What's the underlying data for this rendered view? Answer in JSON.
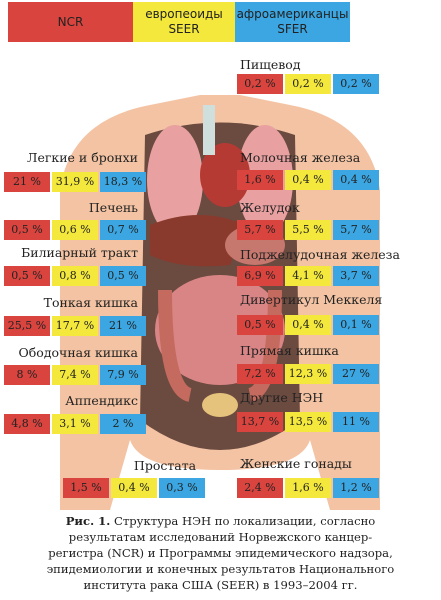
{
  "legend": [
    "NCR",
    "европеоиды SEER",
    "афроамериканцы SFER"
  ],
  "organs": [
    {
      "label": "Легкие и бронхи",
      "values": [
        "21 %",
        "31,9 %",
        "18,3 %"
      ]
    },
    {
      "label": "Печень",
      "values": [
        "0,5 %",
        "0,6 %",
        "0,7 %"
      ]
    },
    {
      "label": "Билиарный тракт",
      "values": [
        "0,5 %",
        "0,8 %",
        "0,5 %"
      ]
    },
    {
      "label": "Тонкая кишка",
      "values": [
        "25,5 %",
        "17,7 %",
        "21 %"
      ]
    },
    {
      "label": "Ободочная кишка",
      "values": [
        "8 %",
        "7,4 %",
        "7,9 %"
      ]
    },
    {
      "label": "Аппендикс",
      "values": [
        "4,8 %",
        "3,1 %",
        "2 %"
      ]
    },
    {
      "label": "Простата",
      "values": [
        "1,5 %",
        "0,4 %",
        "0,3 %"
      ]
    },
    {
      "label": "Пищевод",
      "values": [
        "0,2 %",
        "0,2 %",
        "0,2 %"
      ]
    },
    {
      "label": "Молочная железа",
      "values": [
        "1,6 %",
        "0,4 %",
        "0,4 %"
      ]
    },
    {
      "label": "Желудок",
      "values": [
        "5,7 %",
        "5,5 %",
        "5,7 %"
      ]
    },
    {
      "label": "Поджелудочная железа",
      "values": [
        "6,9 %",
        "4,1 %",
        "3,7 %"
      ]
    },
    {
      "label": "Дивертикул Меккеля",
      "values": [
        "0,5 %",
        "0,4 %",
        "0,1 %"
      ]
    },
    {
      "label": "Прямая кишка",
      "values": [
        "7,2 %",
        "12,3 %",
        "27 %"
      ]
    },
    {
      "label": "Другие НЭН",
      "values": [
        "13,7 %",
        "13,5 %",
        "11 %"
      ]
    },
    {
      "label": "Женские гонады",
      "values": [
        "2,4 %",
        "1,6 %",
        "1,2 %"
      ]
    }
  ],
  "caption": {
    "label": "Рис. 1.",
    "lines": [
      "Структура НЭН по локализации, согласно",
      "результатам исследований Норвежского канцер-",
      "регистра (NCR) и Программы эпидемического надзора,",
      "эпидемиологии и конечных результатов Национального",
      "института рака США (SEER) в 1993–2004 гг."
    ]
  }
}
